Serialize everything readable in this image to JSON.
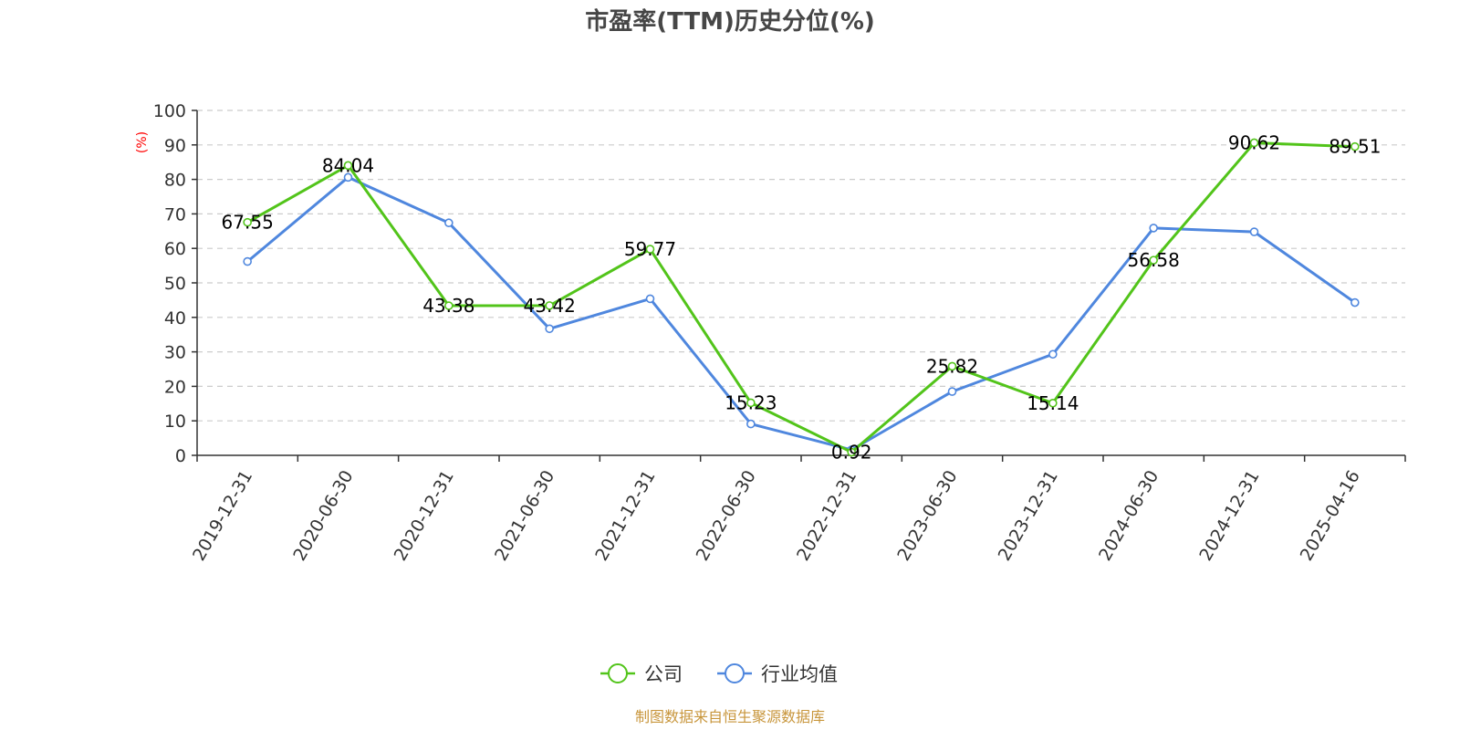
{
  "chart_data": {
    "type": "line",
    "title": "市盈率(TTM)历史分位(%)",
    "ylabel": "(%)",
    "ylim": [
      0,
      100
    ],
    "yticks": [
      0,
      10,
      20,
      30,
      40,
      50,
      60,
      70,
      80,
      90,
      100
    ],
    "grid": true,
    "legend_position": "bottom",
    "categories": [
      "2019-12-31",
      "2020-06-30",
      "2020-12-31",
      "2021-06-30",
      "2021-12-31",
      "2022-06-30",
      "2022-12-31",
      "2023-06-30",
      "2023-12-31",
      "2024-06-30",
      "2024-12-31",
      "2025-04-16"
    ],
    "series": [
      {
        "name": "公司",
        "color": "#52c41a",
        "values": [
          67.55,
          84.04,
          43.38,
          43.42,
          59.77,
          15.23,
          0.92,
          25.82,
          15.14,
          56.58,
          90.62,
          89.51
        ],
        "labels": [
          "67.55",
          "84.04",
          "43.38",
          "43.42",
          "59.77",
          "15.23",
          "0.92",
          "25.82",
          "15.14",
          "56.58",
          "90.62",
          "89.51"
        ]
      },
      {
        "name": "行业均值",
        "color": "#4f87de",
        "values": [
          56.2,
          80.6,
          67.4,
          36.7,
          45.4,
          9.1,
          1.6,
          18.5,
          29.3,
          65.9,
          64.8,
          44.3
        ]
      }
    ]
  },
  "source_text": "制图数据来自恒生聚源数据库",
  "colors": {
    "title": "#464646",
    "axis": "#333333",
    "grid": "#cccccc",
    "unit": "#ff0000",
    "source": "#c8963c"
  }
}
